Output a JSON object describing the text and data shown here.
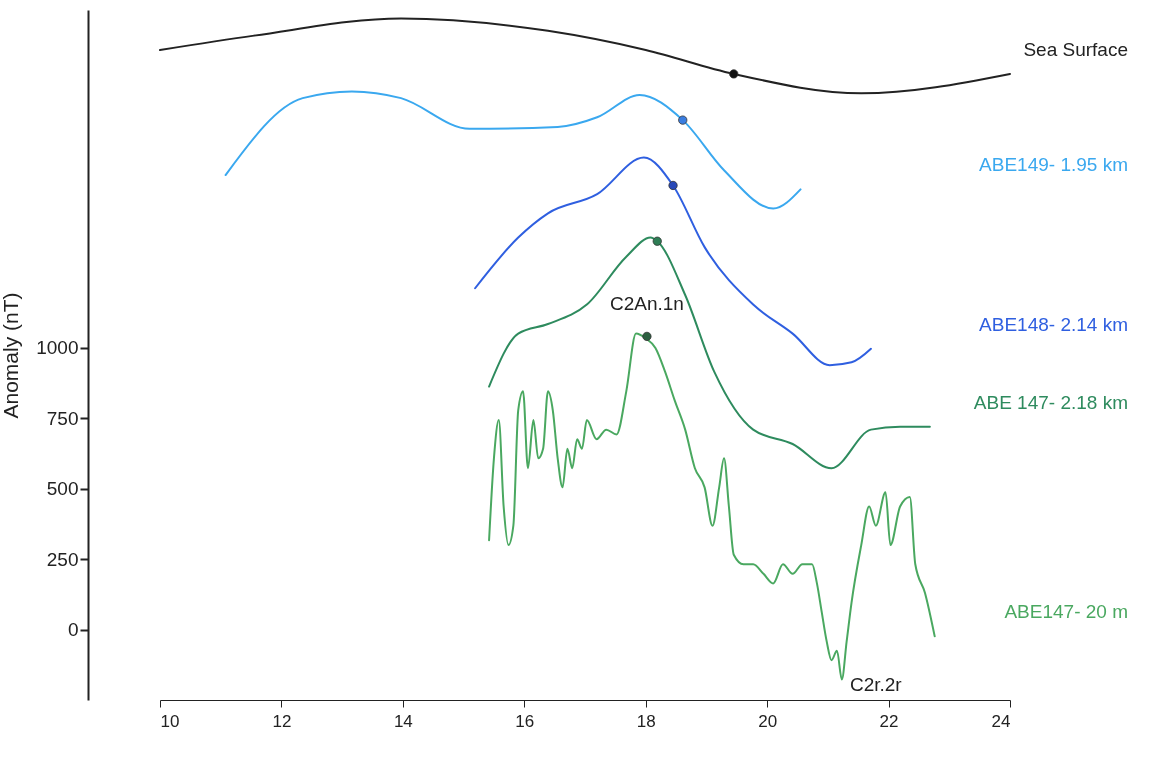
{
  "chart_data": {
    "type": "line",
    "ylabel": "Anomaly (nT)",
    "xlim": [
      10,
      24
    ],
    "xticks": [
      10,
      12,
      14,
      16,
      18,
      20,
      22,
      24
    ],
    "ylim": [
      -250,
      2200
    ],
    "yticks": [
      0,
      250,
      500,
      750,
      1000
    ],
    "grid": false,
    "legend": false,
    "annotations": [
      {
        "text": "C2An.1n",
        "x": 18.02,
        "y": 1041
      },
      {
        "text": "C2r.2r",
        "x": 21.23,
        "y": -177
      }
    ],
    "series": [
      {
        "name": "Sea Surface",
        "color": "#222222",
        "x": [
          10,
          11.55,
          13.97,
          16.39,
          18,
          19.45,
          21.55,
          24
        ],
        "values": [
          2058,
          2109,
          2170,
          2126,
          2058,
          1973,
          1904,
          1973
        ]
      },
      {
        "name": "ABE149- 1.95 km",
        "color": "#3aa8ef",
        "x": [
          11.08,
          12.35,
          13.16,
          13.97,
          15.1,
          16.55,
          17.2,
          17.9,
          18.61,
          19.29,
          20.1,
          20.55
        ],
        "values": [
          1614,
          1887,
          1911,
          1887,
          1778,
          1785,
          1819,
          1898,
          1809,
          1631,
          1495,
          1563
        ]
      },
      {
        "name": "ABE148- 2.14 km",
        "color": "#2f5fe0",
        "x": [
          15.19,
          15.9,
          16.39,
          17.2,
          17.97,
          18.45,
          18.97,
          19.77,
          20.42,
          21.03,
          21.39,
          21.71
        ],
        "values": [
          1212,
          1392,
          1478,
          1546,
          1676,
          1577,
          1358,
          1154,
          1051,
          939,
          949,
          997
        ]
      },
      {
        "name": "ABE 147- 2.18 km",
        "color": "#2e8b5e",
        "x": [
          15.42,
          15.9,
          16.39,
          17.03,
          17.68,
          18.08,
          18.19,
          18.65,
          19.13,
          19.77,
          20.42,
          21.06,
          21.71,
          22.19,
          22.68
        ],
        "values": [
          863,
          1051,
          1085,
          1154,
          1324,
          1392,
          1379,
          1188,
          915,
          710,
          659,
          573,
          710,
          720,
          720
        ]
      },
      {
        "name": "ABE147- 20 m",
        "color": "#4aa860",
        "x": [
          15.42,
          15.5,
          15.58,
          15.66,
          15.74,
          15.82,
          15.9,
          15.98,
          16.06,
          16.15,
          16.23,
          16.31,
          16.39,
          16.47,
          16.55,
          16.63,
          16.71,
          16.79,
          16.87,
          16.95,
          17.03,
          17.19,
          17.35,
          17.52,
          17.68,
          17.84,
          18,
          18.16,
          18.32,
          18.48,
          18.65,
          18.81,
          18.97,
          19.1,
          19.21,
          19.29,
          19.37,
          19.45,
          19.61,
          19.77,
          19.94,
          20.1,
          20.26,
          20.42,
          20.58,
          20.74,
          20.82,
          20.9,
          20.98,
          21.06,
          21.15,
          21.23,
          21.31,
          21.39,
          21.55,
          21.68,
          21.79,
          21.95,
          22.03,
          22.19,
          22.35,
          22.44,
          22.6,
          22.76
        ],
        "values": [
          317,
          608,
          744,
          437,
          300,
          369,
          778,
          846,
          573,
          744,
          608,
          642,
          846,
          778,
          608,
          505,
          642,
          573,
          676,
          642,
          744,
          676,
          710,
          693,
          846,
          1051,
          1034,
          1000,
          915,
          812,
          710,
          573,
          505,
          369,
          505,
          608,
          437,
          266,
          232,
          232,
          198,
          164,
          232,
          198,
          232,
          232,
          164,
          61,
          -41,
          -109,
          -75,
          -177,
          -41,
          96,
          300,
          437,
          369,
          488,
          300,
          437,
          471,
          232,
          130,
          -24
        ]
      },
      {
        "type": "scatter",
        "color": "#111111",
        "x": [
          19.45
        ],
        "values": [
          1973
        ]
      },
      {
        "type": "scatter",
        "color": "#3a7de0",
        "x": [
          18.61
        ],
        "values": [
          1809
        ]
      },
      {
        "type": "scatter",
        "color": "#2848b8",
        "x": [
          18.45
        ],
        "values": [
          1577
        ]
      },
      {
        "type": "scatter",
        "color": "#2e7d55",
        "x": [
          18.19
        ],
        "values": [
          1379
        ]
      },
      {
        "type": "scatter",
        "color": "#2c5f40",
        "x": [
          18.02
        ],
        "values": [
          1041
        ]
      }
    ]
  }
}
